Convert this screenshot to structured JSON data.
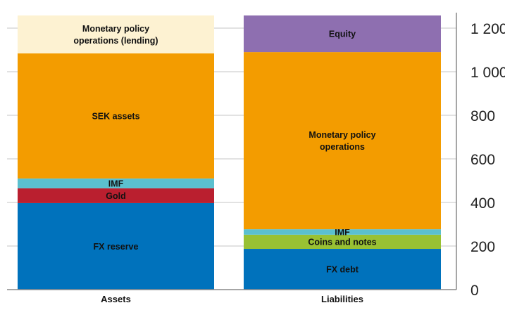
{
  "chart_data": {
    "type": "bar",
    "stacked": true,
    "categories": [
      "Assets",
      "Liabilities"
    ],
    "ylim": [
      0,
      1260
    ],
    "yticks": [
      0,
      200,
      400,
      600,
      800,
      1000,
      1200
    ],
    "ytick_labels": [
      "0",
      "200",
      "400",
      "600",
      "800",
      "1 000",
      "1 200"
    ],
    "y_axis_position": "right",
    "grid": true,
    "stacks": [
      {
        "category": "Assets",
        "segments": [
          {
            "label": "FX reserve",
            "value": 397,
            "color": "#0072BC"
          },
          {
            "label": "Gold",
            "value": 68,
            "color": "#BA1F2F"
          },
          {
            "label": "IMF",
            "value": 45,
            "color": "#5BC0CF"
          },
          {
            "label": "SEK assets",
            "value": 574,
            "color": "#F39C00"
          },
          {
            "label": "Monetary policy operations (lending)",
            "label_lines": [
              "Monetary policy",
              "operations (lending)"
            ],
            "value": 174,
            "color": "#FDF2D2"
          }
        ]
      },
      {
        "category": "Liabilities",
        "segments": [
          {
            "label": "FX debt",
            "value": 187,
            "color": "#0072BC"
          },
          {
            "label": "Coins and notes",
            "value": 65,
            "color": "#99C133"
          },
          {
            "label": "IMF",
            "value": 25,
            "color": "#5BC0CF"
          },
          {
            "label": "Monetary policy operations",
            "label_lines": [
              "Monetary policy",
              "operations"
            ],
            "value": 813,
            "color": "#F39C00"
          },
          {
            "label": "Equity",
            "value": 168,
            "color": "#8E6FB0"
          }
        ]
      }
    ]
  }
}
